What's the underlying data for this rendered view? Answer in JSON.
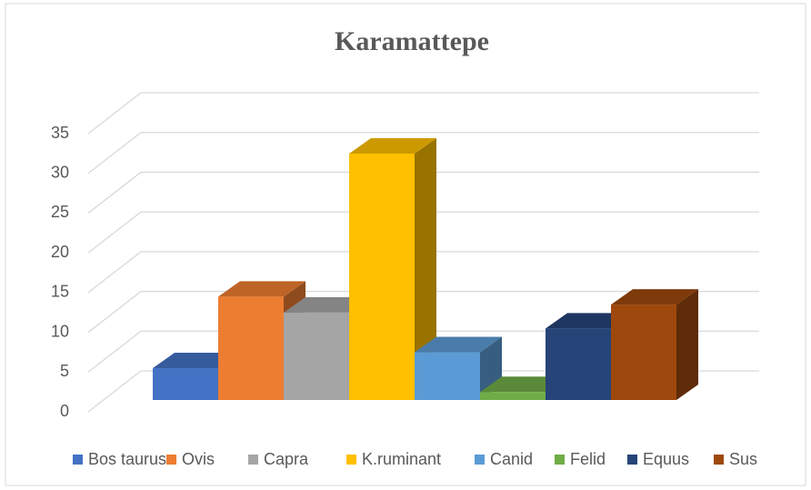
{
  "chart_data": {
    "type": "bar",
    "title": "Karamattepe",
    "series": [
      {
        "name": "Bos taurus",
        "color": "#4472c4",
        "values": [
          4
        ]
      },
      {
        "name": "Ovis",
        "color": "#ed7d31",
        "values": [
          13
        ]
      },
      {
        "name": "Capra",
        "color": "#a5a5a5",
        "values": [
          11
        ]
      },
      {
        "name": "K.ruminant",
        "color": "#ffc000",
        "values": [
          31
        ]
      },
      {
        "name": "Canid",
        "color": "#5b9bd5",
        "values": [
          6
        ]
      },
      {
        "name": "Felid",
        "color": "#70ad47",
        "values": [
          1
        ]
      },
      {
        "name": "Equus",
        "color": "#264478",
        "values": [
          9
        ]
      },
      {
        "name": "Sus",
        "color": "#9e480e",
        "values": [
          12
        ]
      }
    ],
    "ylim": [
      0,
      35
    ],
    "yticks": [
      0,
      5,
      10,
      15,
      20,
      25,
      30,
      35
    ],
    "grid": true,
    "legend": "bottom"
  }
}
